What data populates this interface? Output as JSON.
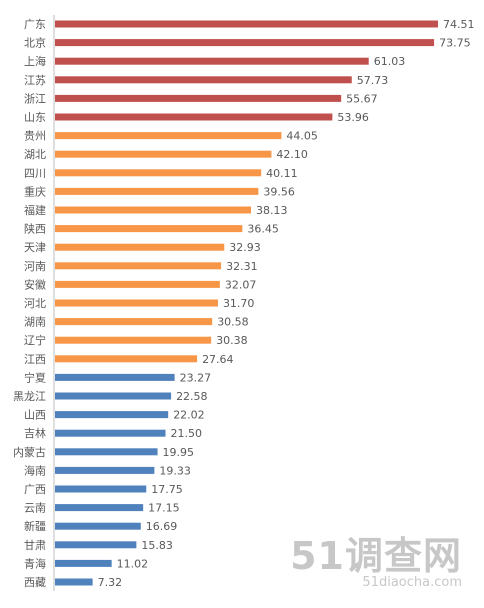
{
  "watermark": {
    "logo": "51调查网",
    "url": "51diaocha.com"
  },
  "colors": {
    "high": "#C0504D",
    "mid": "#F79646",
    "low": "#4F81BD",
    "axis": "#BFBFBF"
  },
  "chart_data": {
    "type": "bar",
    "orientation": "horizontal",
    "title": "",
    "xlabel": "",
    "ylabel": "",
    "xlim": [
      0,
      80
    ],
    "grid": false,
    "legend": "none",
    "categories": [
      "广东",
      "北京",
      "上海",
      "江苏",
      "浙江",
      "山东",
      "贵州",
      "湖北",
      "四川",
      "重庆",
      "福建",
      "陕西",
      "天津",
      "河南",
      "安徽",
      "河北",
      "湖南",
      "辽宁",
      "江西",
      "宁夏",
      "黑龙江",
      "山西",
      "吉林",
      "内蒙古",
      "海南",
      "广西",
      "云南",
      "新疆",
      "甘肃",
      "青海",
      "西藏"
    ],
    "values": [
      74.51,
      73.75,
      61.03,
      57.73,
      55.67,
      53.96,
      44.05,
      42.1,
      40.11,
      39.56,
      38.13,
      36.45,
      32.93,
      32.31,
      32.07,
      31.7,
      30.58,
      30.38,
      27.64,
      23.27,
      22.58,
      22.02,
      21.5,
      19.95,
      19.33,
      17.75,
      17.15,
      16.69,
      15.83,
      11.02,
      7.32
    ],
    "value_labels": [
      "74.51",
      "73.75",
      "61.03",
      "57.73",
      "55.67",
      "53.96",
      "44.05",
      "42.10",
      "40.11",
      "39.56",
      "38.13",
      "36.45",
      "32.93",
      "32.31",
      "32.07",
      "31.70",
      "30.58",
      "30.38",
      "27.64",
      "23.27",
      "22.58",
      "22.02",
      "21.50",
      "19.95",
      "19.33",
      "17.75",
      "17.15",
      "16.69",
      "15.83",
      "11.02",
      "7.32"
    ],
    "tiers": [
      "high",
      "high",
      "high",
      "high",
      "high",
      "high",
      "mid",
      "mid",
      "mid",
      "mid",
      "mid",
      "mid",
      "mid",
      "mid",
      "mid",
      "mid",
      "mid",
      "mid",
      "mid",
      "low",
      "low",
      "low",
      "low",
      "low",
      "low",
      "low",
      "low",
      "low",
      "low",
      "low",
      "low"
    ]
  }
}
